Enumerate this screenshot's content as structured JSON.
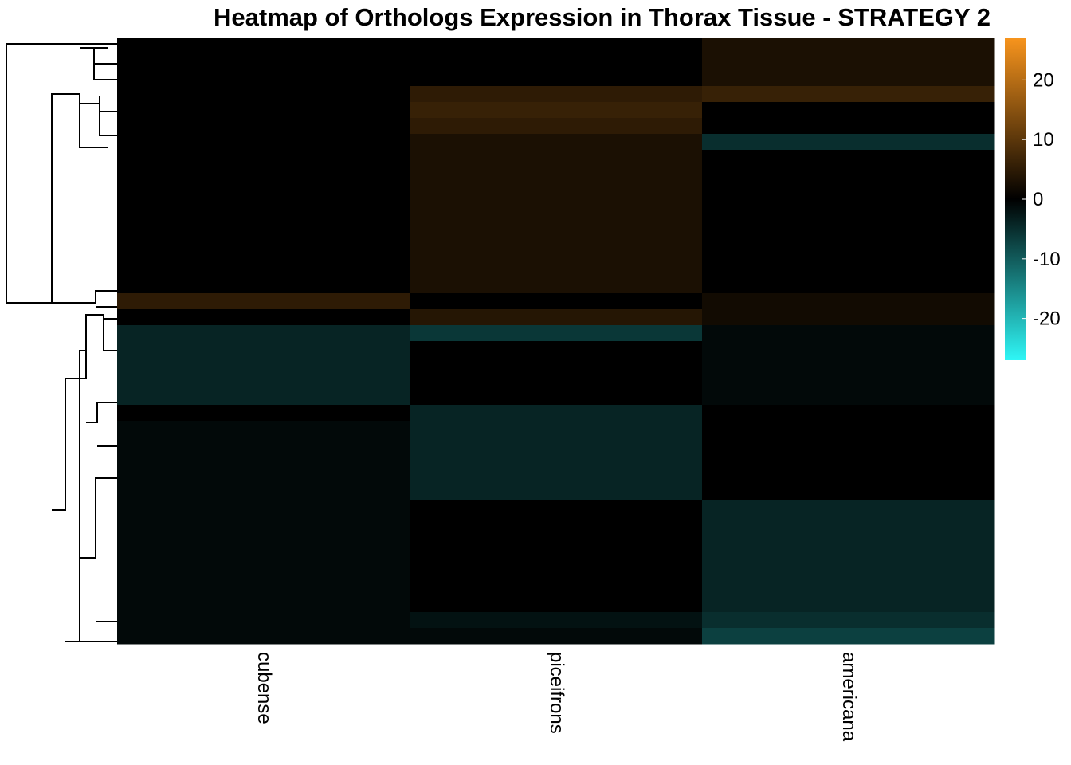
{
  "chart_data": {
    "type": "heatmap",
    "title": "Heatmap of Orthologs Expression in Thorax Tissue - STRATEGY 2",
    "columns": [
      "cubense",
      "piceifrons",
      "americana"
    ],
    "values": [
      [
        0,
        0,
        3
      ],
      [
        0,
        0,
        3
      ],
      [
        0,
        0,
        3
      ],
      [
        0,
        5,
        6
      ],
      [
        0,
        6,
        0
      ],
      [
        0,
        5,
        0
      ],
      [
        0,
        3,
        -5
      ],
      [
        0,
        3,
        0
      ],
      [
        0,
        3,
        0
      ],
      [
        0,
        3,
        0
      ],
      [
        0,
        3,
        0
      ],
      [
        0,
        3,
        0
      ],
      [
        0,
        3,
        0
      ],
      [
        0,
        3,
        0
      ],
      [
        0,
        3,
        0
      ],
      [
        0,
        3,
        0
      ],
      [
        5,
        0,
        2
      ],
      [
        0,
        4,
        2
      ],
      [
        -4,
        -6,
        -1
      ],
      [
        -4,
        0,
        -1
      ],
      [
        -4,
        0,
        -1
      ],
      [
        -4,
        0,
        -1
      ],
      [
        -4,
        0,
        -1
      ],
      [
        0,
        -4,
        0
      ],
      [
        -1,
        -4,
        0
      ],
      [
        -1,
        -4,
        0
      ],
      [
        -1,
        -4,
        0
      ],
      [
        -1,
        -4,
        0
      ],
      [
        -1,
        -4,
        0
      ],
      [
        -1,
        0,
        -4
      ],
      [
        -1,
        0,
        -4
      ],
      [
        -1,
        0,
        -4
      ],
      [
        -1,
        0,
        -4
      ],
      [
        -1,
        0,
        -4
      ],
      [
        -1,
        0,
        -4
      ],
      [
        -1,
        0,
        -4
      ],
      [
        -1,
        -2,
        -5
      ],
      [
        -1,
        -1,
        -7
      ]
    ],
    "zlim": [
      -27,
      27
    ],
    "colors": [
      "#2ff6f6",
      "#000000",
      "#f7941d"
    ],
    "colorbar_ticks": [
      20,
      10,
      0,
      -10,
      -20
    ]
  }
}
